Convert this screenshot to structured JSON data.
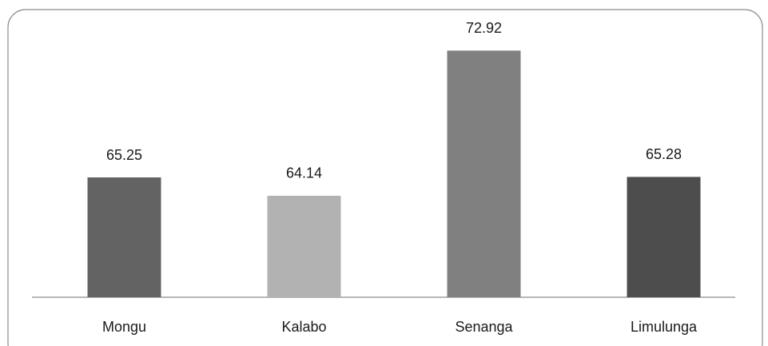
{
  "chart_data": {
    "type": "bar",
    "categories": [
      "Mongu",
      "Kalabo",
      "Senanga",
      "Limulunga"
    ],
    "values": [
      65.25,
      64.14,
      72.92,
      65.28
    ],
    "colors": [
      "#636363",
      "#b2b2b2",
      "#808080",
      "#4d4d4d"
    ],
    "ylim": [
      58,
      74
    ]
  }
}
